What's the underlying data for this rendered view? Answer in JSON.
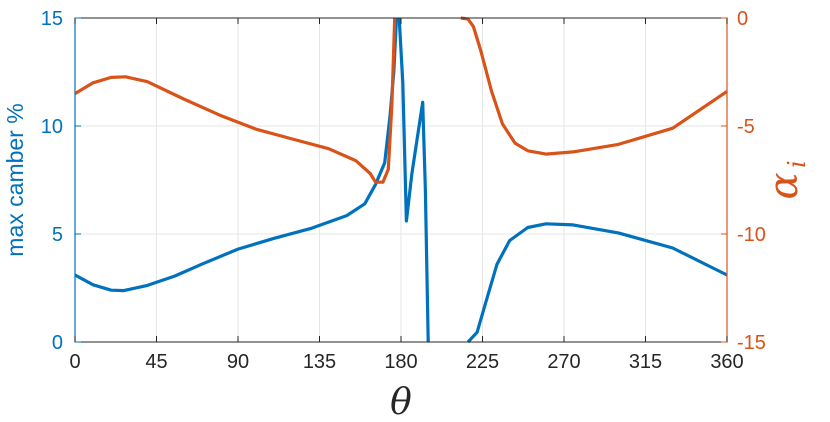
{
  "chart_data": {
    "type": "line",
    "xlabel": "θ",
    "ylabel_left": "max camber %",
    "ylabel_right_main": "α",
    "ylabel_right_sub": "i",
    "xlim": [
      0,
      360
    ],
    "ylim_left": [
      0,
      15
    ],
    "ylim_right": [
      -15,
      0
    ],
    "x_ticks": [
      "0",
      "45",
      "90",
      "135",
      "180",
      "225",
      "270",
      "315",
      "360"
    ],
    "y_ticks_left": [
      "0",
      "5",
      "10",
      "15"
    ],
    "y_ticks_right": [
      "-15",
      "-10",
      "-5",
      "0"
    ],
    "grid": true,
    "series": [
      {
        "axis": "left",
        "color": "#0072BD",
        "segments": [
          [
            [
              0,
              3.1
            ],
            [
              10,
              2.65
            ],
            [
              20,
              2.4
            ],
            [
              27,
              2.38
            ],
            [
              40,
              2.62
            ],
            [
              55,
              3.05
            ],
            [
              70,
              3.6
            ],
            [
              90,
              4.3
            ],
            [
              110,
              4.8
            ],
            [
              130,
              5.25
            ],
            [
              150,
              5.85
            ],
            [
              160,
              6.4
            ],
            [
              166,
              7.3
            ],
            [
              171,
              8.3
            ],
            [
              174,
              10.5
            ],
            [
              176,
              12.5
            ],
            [
              177.5,
              15
            ]
          ],
          [
            [
              179,
              15
            ],
            [
              181,
              12
            ],
            [
              183,
              5.6
            ],
            [
              186,
              7.8
            ],
            [
              190,
              10
            ],
            [
              192,
              11.1
            ],
            [
              193.5,
              7
            ],
            [
              195,
              0
            ]
          ],
          [
            [
              217,
              0
            ],
            [
              222,
              0.45
            ],
            [
              226,
              1.6
            ],
            [
              233,
              3.6
            ],
            [
              240,
              4.7
            ],
            [
              250,
              5.3
            ],
            [
              260,
              5.47
            ],
            [
              275,
              5.42
            ],
            [
              300,
              5.05
            ],
            [
              330,
              4.35
            ],
            [
              360,
              3.1
            ]
          ]
        ]
      },
      {
        "axis": "right",
        "color": "#D95319",
        "segments": [
          [
            [
              0,
              -3.5
            ],
            [
              10,
              -3.0
            ],
            [
              20,
              -2.75
            ],
            [
              28,
              -2.72
            ],
            [
              40,
              -2.95
            ],
            [
              60,
              -3.75
            ],
            [
              80,
              -4.5
            ],
            [
              100,
              -5.15
            ],
            [
              120,
              -5.6
            ],
            [
              140,
              -6.05
            ],
            [
              155,
              -6.6
            ],
            [
              163,
              -7.2
            ],
            [
              166,
              -7.6
            ],
            [
              170,
              -7.6
            ],
            [
              173,
              -7.0
            ],
            [
              175,
              -4
            ],
            [
              176.5,
              0
            ]
          ],
          [
            [
              213,
              0
            ],
            [
              217,
              -0.05
            ],
            [
              220,
              -0.4
            ],
            [
              224,
              -1.5
            ],
            [
              230,
              -3.4
            ],
            [
              236,
              -4.9
            ],
            [
              243,
              -5.8
            ],
            [
              250,
              -6.15
            ],
            [
              260,
              -6.3
            ],
            [
              275,
              -6.2
            ],
            [
              300,
              -5.85
            ],
            [
              330,
              -5.1
            ],
            [
              360,
              -3.4
            ]
          ]
        ]
      }
    ]
  }
}
